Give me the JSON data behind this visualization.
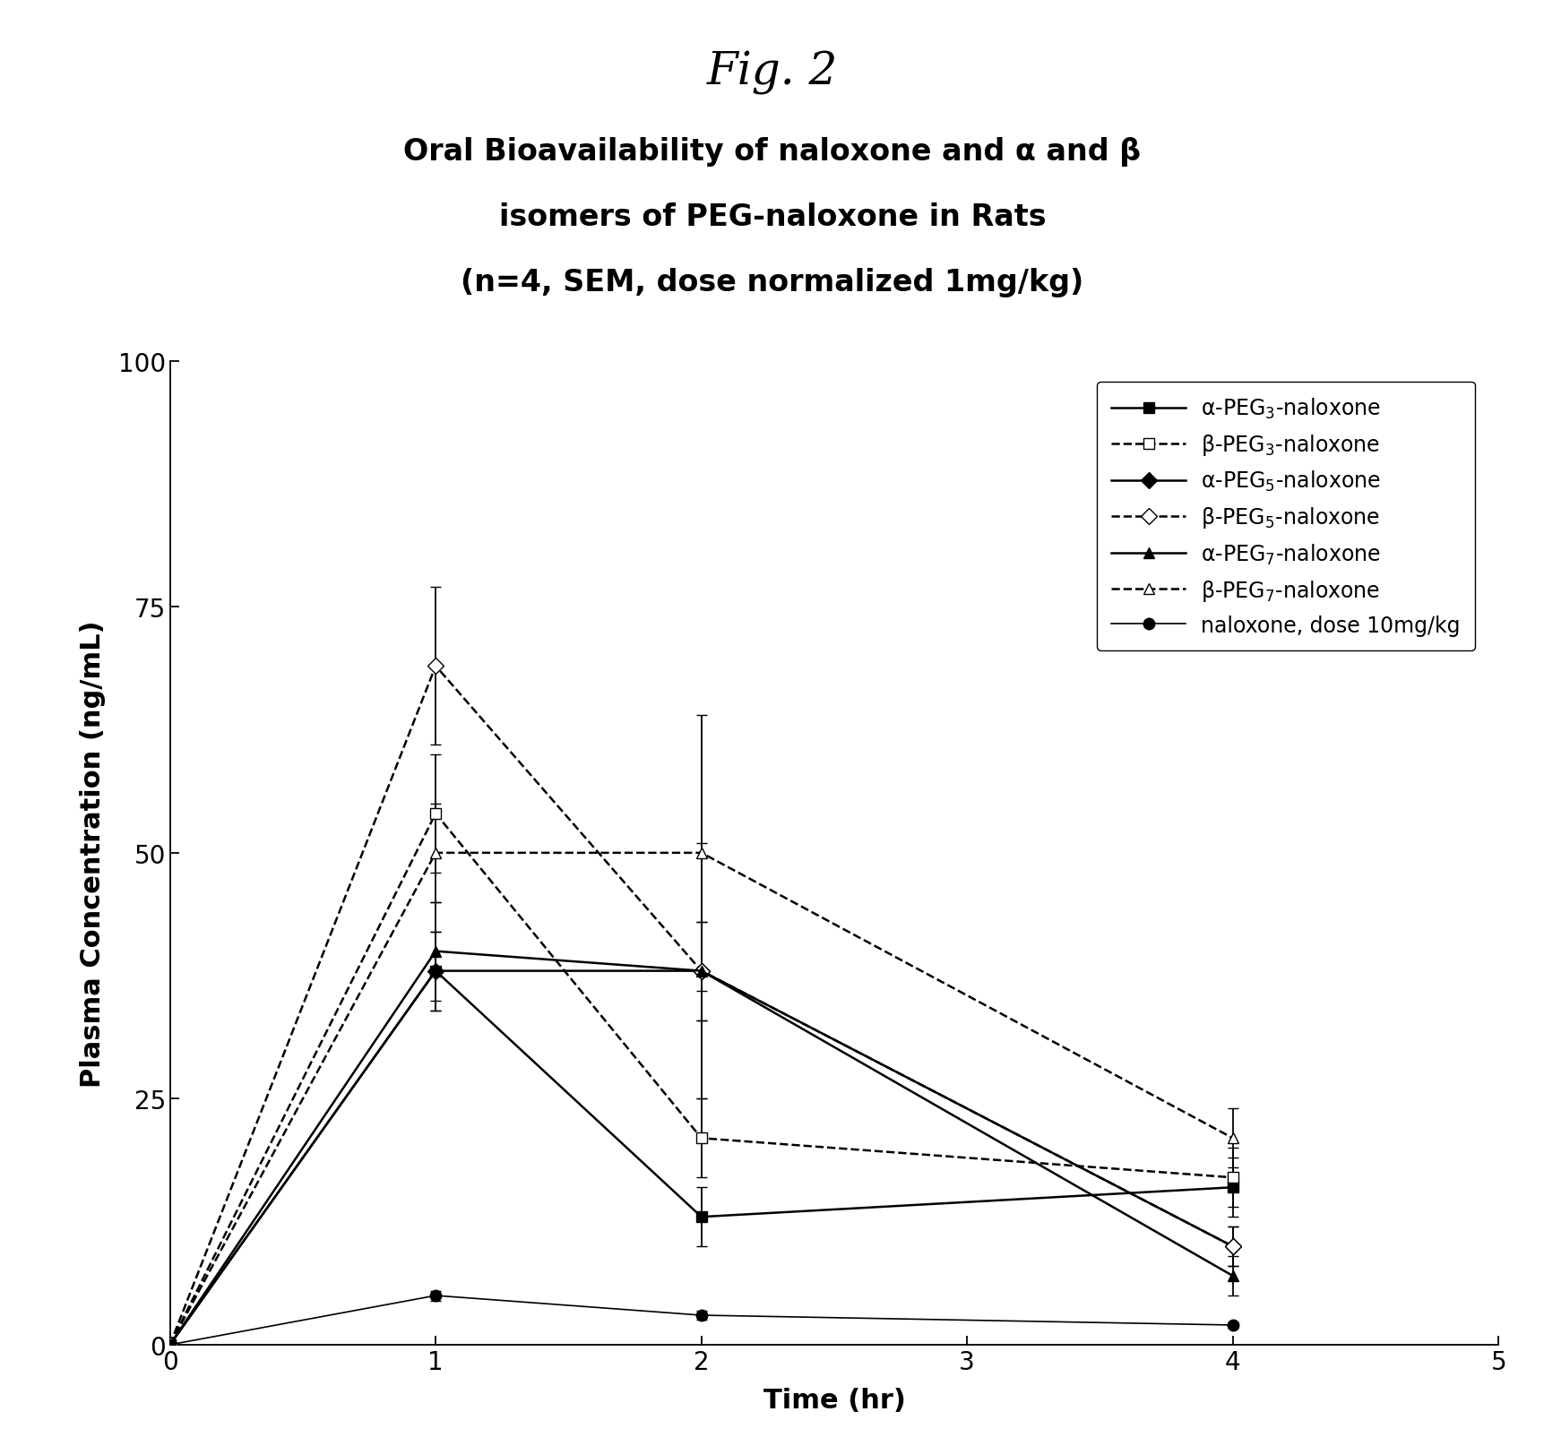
{
  "fig_title": "Fig. 2",
  "plot_title_line1": "Oral Bioavailability of naloxone and α and β",
  "plot_title_line2": "isomers of PEG-naloxone in Rats",
  "plot_title_line3": "(n=4, SEM, dose normalized 1mg/kg)",
  "xlabel": "Time (hr)",
  "ylabel": "Plasma Concentration (ng/mL)",
  "xlim": [
    0,
    5
  ],
  "ylim": [
    0,
    100
  ],
  "xticks": [
    0,
    1,
    2,
    3,
    4,
    5
  ],
  "yticks": [
    0,
    25,
    50,
    75,
    100
  ],
  "time_points": [
    0,
    1,
    2,
    4
  ],
  "series": [
    {
      "name": "α-PEG$_3$-naloxone",
      "values": [
        0,
        38,
        13,
        16
      ],
      "yerr": [
        0,
        4,
        3,
        3
      ],
      "linestyle": "solid",
      "marker": "s",
      "markerfacecolor": "black",
      "color": "black",
      "linewidth": 1.8
    },
    {
      "name": "β-PEG$_3$-naloxone",
      "values": [
        0,
        54,
        21,
        17
      ],
      "yerr": [
        0,
        6,
        4,
        3
      ],
      "linestyle": "dashed",
      "marker": "s",
      "markerfacecolor": "white",
      "color": "black",
      "linewidth": 1.8
    },
    {
      "name": "α-PEG$_5$-naloxone",
      "values": [
        0,
        38,
        38,
        10
      ],
      "yerr": [
        0,
        4,
        5,
        2
      ],
      "linestyle": "solid",
      "marker": "D",
      "markerfacecolor": "black",
      "color": "black",
      "linewidth": 1.8
    },
    {
      "name": "β-PEG$_5$-naloxone",
      "values": [
        0,
        69,
        38,
        10
      ],
      "yerr": [
        0,
        8,
        13,
        2
      ],
      "linestyle": "dashed",
      "marker": "D",
      "markerfacecolor": "white",
      "color": "black",
      "linewidth": 1.8
    },
    {
      "name": "α-PEG$_7$-naloxone",
      "values": [
        0,
        40,
        38,
        7
      ],
      "yerr": [
        0,
        5,
        5,
        2
      ],
      "linestyle": "solid",
      "marker": "^",
      "markerfacecolor": "black",
      "color": "black",
      "linewidth": 1.8
    },
    {
      "name": "β-PEG$_7$-naloxone",
      "values": [
        0,
        50,
        50,
        21
      ],
      "yerr": [
        0,
        5,
        14,
        3
      ],
      "linestyle": "dashed",
      "marker": "^",
      "markerfacecolor": "white",
      "color": "black",
      "linewidth": 1.8
    },
    {
      "name": "naloxone, dose 10mg/kg",
      "values": [
        0,
        5,
        3,
        2
      ],
      "yerr": [
        0,
        0.5,
        0.5,
        0.3
      ],
      "linestyle": "solid",
      "marker": "o",
      "markerfacecolor": "black",
      "color": "black",
      "linewidth": 1.2
    }
  ],
  "background_color": "#ffffff",
  "fig_title_fontsize": 36,
  "subtitle_fontsize": 24,
  "axis_label_fontsize": 22,
  "tick_fontsize": 20,
  "legend_fontsize": 17
}
